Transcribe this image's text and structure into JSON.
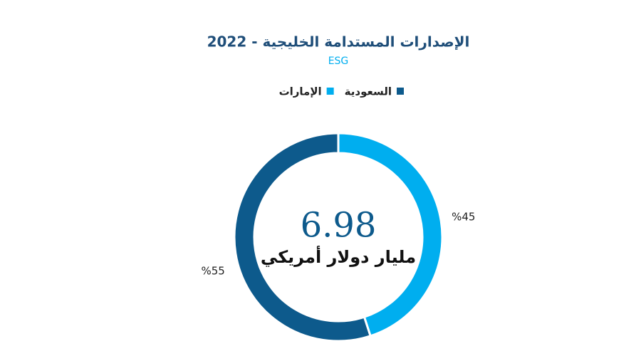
{
  "chart_data": {
    "type": "donut",
    "title": "الإصدارات المستدامة الخليجية - 2022",
    "subtitle": "ESG",
    "categories": [
      "السعودية",
      "الإمارات"
    ],
    "values": [
      55,
      45
    ],
    "value_labels": [
      "%55",
      "%45"
    ],
    "colors": [
      "#0d5a8c",
      "#00aeef"
    ],
    "center_value": "6.98",
    "center_label": "مليار دولار أمريكي",
    "legend": "top"
  }
}
